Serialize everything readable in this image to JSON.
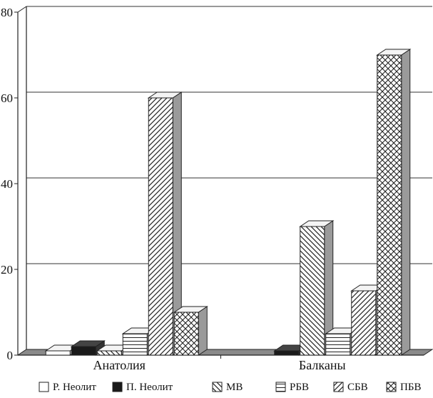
{
  "chart_data": {
    "type": "bar",
    "style": "3d-clustered-column",
    "categories": [
      "Анатолия",
      "Балканы"
    ],
    "series": [
      {
        "name": "Р. Неолит",
        "pattern": "blank",
        "values": [
          1,
          0
        ]
      },
      {
        "name": "П. Неолит",
        "pattern": "solid-dark",
        "values": [
          2,
          1
        ]
      },
      {
        "name": "МВ",
        "pattern": "diagonal-down",
        "values": [
          1,
          30
        ]
      },
      {
        "name": "РБВ",
        "pattern": "horizontal-lines",
        "values": [
          5,
          5
        ]
      },
      {
        "name": "СБВ",
        "pattern": "diagonal-up",
        "values": [
          60,
          15
        ]
      },
      {
        "name": "ПБВ",
        "pattern": "crosshatch",
        "values": [
          10,
          70
        ]
      }
    ],
    "y_ticks": [
      "0",
      "20",
      "40",
      "60",
      "80"
    ],
    "ylim": [
      0,
      80
    ],
    "grid": true,
    "legend_position": "bottom",
    "colors": {
      "dark": "#1a1a1a",
      "side": "#9a9a9a",
      "floor": "#8a8a8a",
      "line": "#222222"
    }
  }
}
